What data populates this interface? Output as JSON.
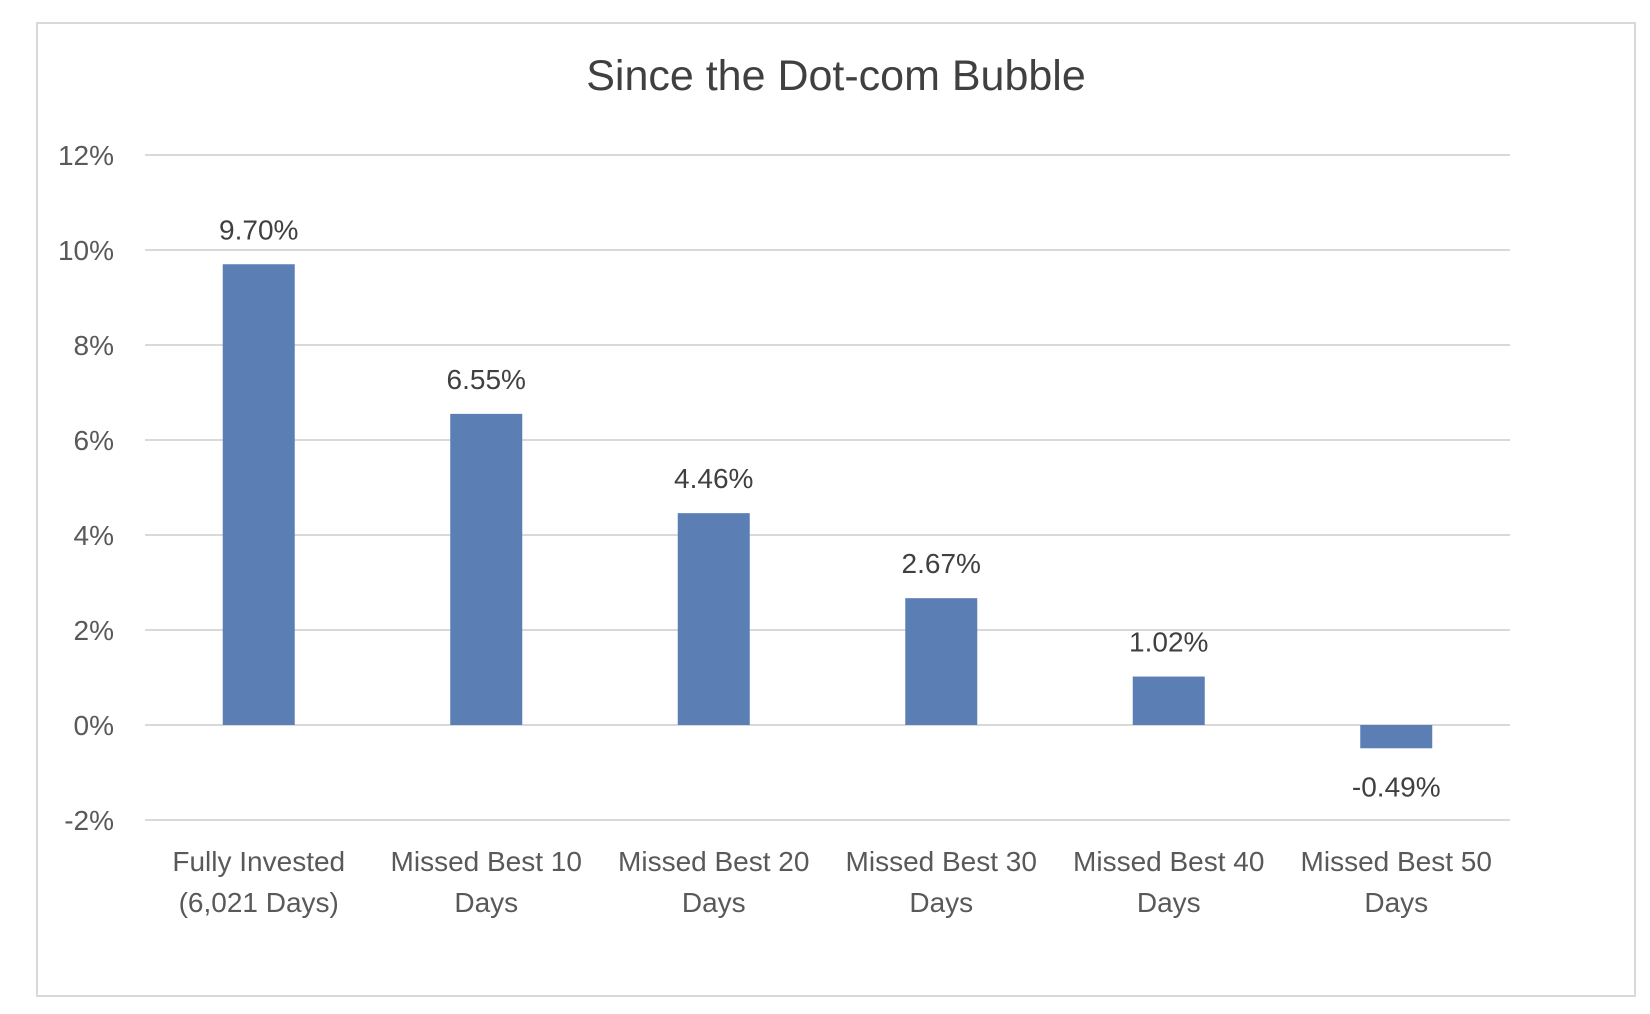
{
  "chart_data": {
    "type": "bar",
    "title": "Since the Dot-com Bubble",
    "categories": [
      [
        "Fully Invested",
        "(6,021 Days)"
      ],
      [
        "Missed Best 10",
        "Days"
      ],
      [
        "Missed Best 20",
        "Days"
      ],
      [
        "Missed Best 30",
        "Days"
      ],
      [
        "Missed Best 40",
        "Days"
      ],
      [
        "Missed Best 50",
        "Days"
      ]
    ],
    "values": [
      9.7,
      6.55,
      4.46,
      2.67,
      1.02,
      -0.49
    ],
    "data_labels": [
      "9.70%",
      "6.55%",
      "4.46%",
      "2.67%",
      "1.02%",
      "-0.49%"
    ],
    "y_ticks": [
      12,
      10,
      8,
      6,
      4,
      2,
      0,
      -2
    ],
    "y_tick_labels": [
      "12%",
      "10%",
      "8%",
      "6%",
      "4%",
      "2%",
      "0%",
      "-2%"
    ],
    "ylim": [
      -2,
      12
    ],
    "grid": true,
    "legend": false,
    "colors": {
      "bar": "#5b7fb5",
      "grid": "#d9d9d9",
      "text": "#595959",
      "title": "#404040",
      "frame": "#d9d9d9"
    }
  }
}
